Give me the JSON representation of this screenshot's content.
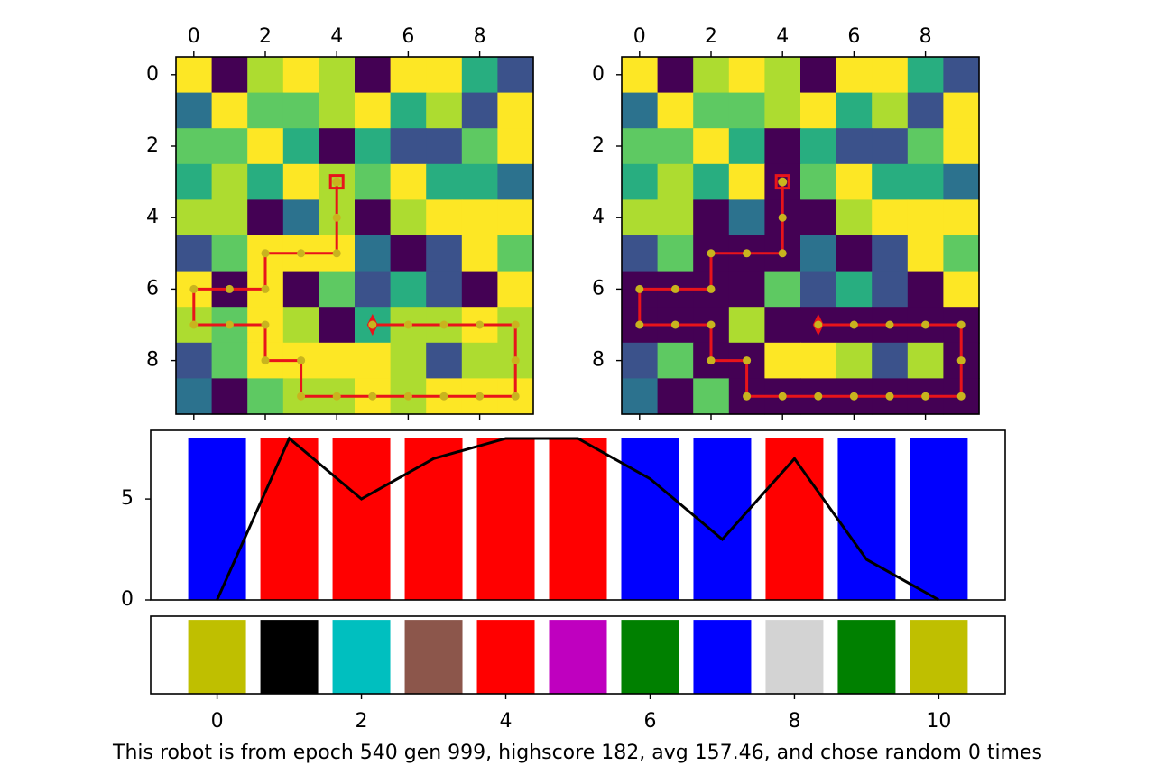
{
  "palette": {
    "0": "#440154",
    "1": "#3b528b",
    "2": "#2c728e",
    "3": "#28ae80",
    "4": "#5ec962",
    "5": "#addc30",
    "6": "#fde725"
  },
  "chart_data": [
    {
      "type": "heatmap",
      "panel": "grid-left",
      "x_ticks": [
        "0",
        "2",
        "4",
        "6",
        "8"
      ],
      "y_ticks": [
        "0",
        "2",
        "4",
        "6",
        "8"
      ],
      "xlim": [
        -0.5,
        9.5
      ],
      "ylim": [
        -0.5,
        9.5
      ],
      "grid": [
        [
          6,
          0,
          5,
          6,
          5,
          0,
          6,
          6,
          3,
          1
        ],
        [
          2,
          6,
          4,
          4,
          5,
          6,
          3,
          5,
          1,
          6
        ],
        [
          4,
          4,
          6,
          3,
          0,
          3,
          1,
          1,
          4,
          6
        ],
        [
          3,
          5,
          3,
          6,
          5,
          4,
          6,
          3,
          3,
          2
        ],
        [
          5,
          5,
          0,
          2,
          5,
          0,
          5,
          6,
          6,
          6
        ],
        [
          1,
          4,
          6,
          6,
          6,
          2,
          0,
          1,
          6,
          4
        ],
        [
          6,
          0,
          6,
          0,
          4,
          1,
          3,
          1,
          0,
          6
        ],
        [
          5,
          4,
          6,
          5,
          0,
          3,
          5,
          5,
          6,
          5
        ],
        [
          1,
          4,
          6,
          6,
          6,
          6,
          5,
          1,
          5,
          5
        ],
        [
          2,
          0,
          4,
          5,
          5,
          6,
          5,
          6,
          6,
          6
        ]
      ],
      "path": [
        [
          4,
          3
        ],
        [
          4,
          4
        ],
        [
          4,
          5
        ],
        [
          3,
          5
        ],
        [
          2,
          5
        ],
        [
          2,
          6
        ],
        [
          1,
          6
        ],
        [
          0,
          6
        ],
        [
          0,
          7
        ],
        [
          1,
          7
        ],
        [
          2,
          7
        ],
        [
          2,
          8
        ],
        [
          3,
          8
        ],
        [
          3,
          9
        ],
        [
          4,
          9
        ],
        [
          5,
          9
        ],
        [
          6,
          9
        ],
        [
          7,
          9
        ],
        [
          8,
          9
        ],
        [
          9,
          9
        ],
        [
          9,
          8
        ],
        [
          9,
          7
        ],
        [
          8,
          7
        ],
        [
          7,
          7
        ],
        [
          6,
          7
        ],
        [
          5,
          7
        ]
      ],
      "start": [
        4,
        3
      ],
      "end": [
        5,
        7
      ]
    },
    {
      "type": "heatmap",
      "panel": "grid-right",
      "x_ticks": [
        "0",
        "2",
        "4",
        "6",
        "8"
      ],
      "y_ticks": [
        "0",
        "2",
        "4",
        "6",
        "8"
      ],
      "xlim": [
        -0.5,
        9.5
      ],
      "ylim": [
        -0.5,
        9.5
      ],
      "grid": [
        [
          6,
          0,
          5,
          6,
          5,
          0,
          6,
          6,
          3,
          1
        ],
        [
          2,
          6,
          4,
          4,
          5,
          6,
          3,
          5,
          1,
          6
        ],
        [
          4,
          4,
          6,
          3,
          0,
          3,
          1,
          1,
          4,
          6
        ],
        [
          3,
          5,
          3,
          6,
          0,
          4,
          6,
          3,
          3,
          2
        ],
        [
          5,
          5,
          0,
          2,
          0,
          0,
          5,
          6,
          6,
          6
        ],
        [
          1,
          4,
          0,
          0,
          0,
          2,
          0,
          1,
          6,
          4
        ],
        [
          0,
          0,
          0,
          0,
          4,
          1,
          3,
          1,
          0,
          6
        ],
        [
          0,
          0,
          0,
          5,
          0,
          0,
          0,
          0,
          0,
          0
        ],
        [
          1,
          4,
          0,
          0,
          6,
          6,
          5,
          1,
          5,
          0
        ],
        [
          2,
          0,
          4,
          0,
          0,
          0,
          0,
          0,
          0,
          0
        ]
      ],
      "path": [
        [
          4,
          3
        ],
        [
          4,
          4
        ],
        [
          4,
          5
        ],
        [
          3,
          5
        ],
        [
          2,
          5
        ],
        [
          2,
          6
        ],
        [
          1,
          6
        ],
        [
          0,
          6
        ],
        [
          0,
          7
        ],
        [
          1,
          7
        ],
        [
          2,
          7
        ],
        [
          2,
          8
        ],
        [
          3,
          8
        ],
        [
          3,
          9
        ],
        [
          4,
          9
        ],
        [
          5,
          9
        ],
        [
          6,
          9
        ],
        [
          7,
          9
        ],
        [
          8,
          9
        ],
        [
          9,
          9
        ],
        [
          9,
          8
        ],
        [
          9,
          7
        ],
        [
          8,
          7
        ],
        [
          7,
          7
        ],
        [
          6,
          7
        ],
        [
          5,
          7
        ]
      ],
      "start": [
        4,
        3
      ],
      "end": [
        5,
        7
      ]
    },
    {
      "type": "bar",
      "panel": "bars-middle",
      "categories": [
        0,
        1,
        2,
        3,
        4,
        5,
        6,
        7,
        8,
        9,
        10
      ],
      "values": [
        8,
        8,
        8,
        8,
        8,
        8,
        8,
        8,
        8,
        8,
        8
      ],
      "colors": [
        "#0000ff",
        "#ff0000",
        "#ff0000",
        "#ff0000",
        "#ff0000",
        "#ff0000",
        "#0000ff",
        "#0000ff",
        "#ff0000",
        "#0000ff",
        "#0000ff"
      ],
      "line": {
        "x": [
          0,
          1,
          2,
          3,
          4,
          5,
          6,
          7,
          8,
          9,
          10
        ],
        "y": [
          0,
          8,
          5,
          7,
          8,
          8,
          6,
          3,
          7,
          2,
          0
        ],
        "color": "#000000"
      },
      "y_ticks": [
        "0",
        "5"
      ],
      "xlim": [
        -0.92,
        10.92
      ],
      "ylim": [
        0,
        8.4
      ]
    },
    {
      "type": "bar",
      "panel": "bars-bottom",
      "categories": [
        0,
        1,
        2,
        3,
        4,
        5,
        6,
        7,
        8,
        9,
        10
      ],
      "values": [
        1,
        1,
        1,
        1,
        1,
        1,
        1,
        1,
        1,
        1,
        1
      ],
      "colors": [
        "#bfbf00",
        "#000000",
        "#00bfbf",
        "#8c564b",
        "#ff0000",
        "#bf00bf",
        "#008000",
        "#0000ff",
        "#d3d3d3",
        "#008000",
        "#bfbf00"
      ],
      "x_ticks": [
        "0",
        "2",
        "4",
        "6",
        "8",
        "10"
      ],
      "xlim": [
        -0.92,
        10.92
      ],
      "ylim": [
        0,
        1.05
      ]
    }
  ],
  "caption": "This robot is from epoch 540 gen 999, highscore 182, avg 157.46, and chose random 0 times"
}
